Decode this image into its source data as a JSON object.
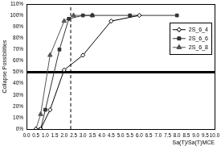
{
  "chart_data": {
    "type": "line",
    "x_label": "Sa(T)/Sa(T)MCE",
    "y_label": "Collapse Possibilities",
    "xlim": [
      0,
      10
    ],
    "xticks": [
      {
        "value": 0,
        "label": "0.0"
      },
      {
        "value": 0.5,
        "label": "0.5"
      },
      {
        "value": 1,
        "label": "1.0"
      },
      {
        "value": 1.5,
        "label": "1.5"
      },
      {
        "value": 2,
        "label": "2.0"
      },
      {
        "value": 2.5,
        "label": "2.5"
      },
      {
        "value": 3,
        "label": "3.0"
      },
      {
        "value": 3.5,
        "label": "3.5"
      },
      {
        "value": 4,
        "label": "4.0"
      },
      {
        "value": 4.5,
        "label": "4.5"
      },
      {
        "value": 5,
        "label": "5.0"
      },
      {
        "value": 5.5,
        "label": "5.5"
      },
      {
        "value": 6,
        "label": "6.0"
      },
      {
        "value": 6.5,
        "label": "6.5"
      },
      {
        "value": 7,
        "label": "7.0"
      },
      {
        "value": 7.5,
        "label": "7.5"
      },
      {
        "value": 8,
        "label": "8.0"
      },
      {
        "value": 8.5,
        "label": "8.5"
      },
      {
        "value": 9,
        "label": "9.0"
      },
      {
        "value": 9.5,
        "label": "9.5"
      },
      {
        "value": 10,
        "label": "10.0"
      }
    ],
    "ylim": [
      0,
      110
    ],
    "yticks": [
      {
        "value": 0,
        "label": "0%"
      },
      {
        "value": 10,
        "label": "10%"
      },
      {
        "value": 20,
        "label": "20%"
      },
      {
        "value": 30,
        "label": "30%"
      },
      {
        "value": 40,
        "label": "40%"
      },
      {
        "value": 50,
        "label": "50%"
      },
      {
        "value": 60,
        "label": "60%"
      },
      {
        "value": 70,
        "label": "70%"
      },
      {
        "value": 80,
        "label": "80%"
      },
      {
        "value": 90,
        "label": "90%"
      },
      {
        "value": 100,
        "label": "100%"
      },
      {
        "value": 110,
        "label": "110%"
      }
    ],
    "grid": false,
    "legend": "upper right",
    "series": [
      {
        "name": "2S_6_4",
        "color": "#000000",
        "marker": "open diamond",
        "x": [
          0.5,
          0.75,
          1.25,
          2.0,
          3.0,
          4.5,
          6.0
        ],
        "values": [
          0,
          0,
          17,
          52,
          65,
          95,
          100
        ]
      },
      {
        "name": "2S_6_6",
        "color": "#333333",
        "marker": "square",
        "x": [
          0.75,
          1.0,
          1.75,
          2.25,
          3.0,
          3.5,
          5.5,
          8.0
        ],
        "values": [
          0,
          17,
          70,
          97,
          100,
          100,
          100,
          100
        ]
      },
      {
        "name": "2S_6_8",
        "color": "#555555",
        "marker": "triangle",
        "x": [
          0.5,
          0.75,
          1.25,
          2.0,
          2.5,
          3.5
        ],
        "values": [
          0,
          13,
          65,
          95,
          100,
          100
        ]
      }
    ],
    "reference_lines": [
      {
        "axis": "y",
        "value": 50,
        "color": "#000000",
        "line_style": "solid"
      },
      {
        "axis": "x",
        "value": 2.35,
        "color": "#000000",
        "line_style": "dashed"
      }
    ]
  }
}
